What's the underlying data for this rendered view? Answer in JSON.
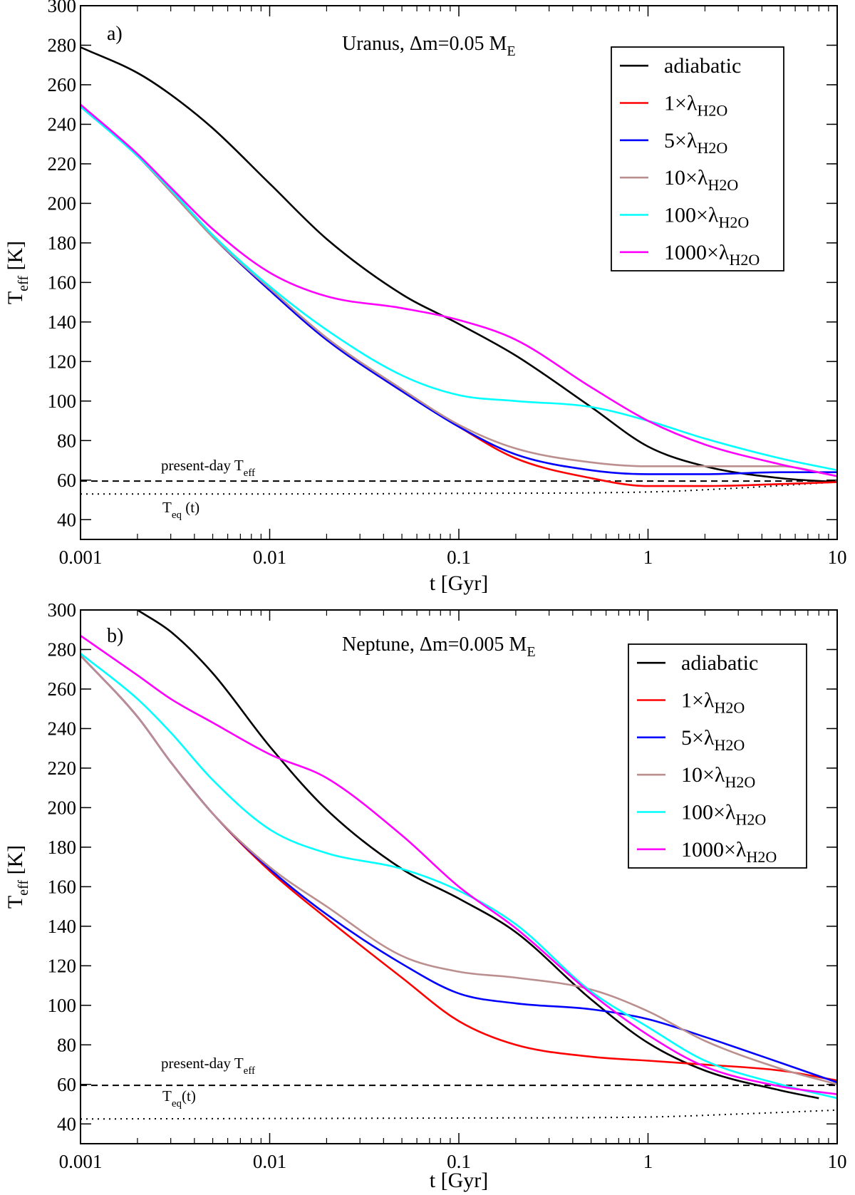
{
  "chart_data": [
    {
      "type": "line",
      "panel_label": "a)",
      "title": {
        "main": "Uranus, Δm=0.05 M",
        "sub": "E"
      },
      "xlabel": "t [Gyr]",
      "ylabel": {
        "main": "T",
        "sub": "eff",
        "rest": " [K]"
      },
      "x_scale": "log",
      "xlim": [
        0.001,
        10
      ],
      "ylim": [
        30,
        300
      ],
      "x_ticks": [
        0.001,
        0.01,
        0.1,
        1,
        10
      ],
      "x_tick_labels": [
        "0.001",
        "0.01",
        "0.1",
        "1",
        "10"
      ],
      "y_ticks": [
        40,
        60,
        80,
        100,
        120,
        140,
        160,
        180,
        200,
        220,
        240,
        260,
        280,
        300
      ],
      "y_tick_labels": [
        "40",
        "60",
        "80",
        "100",
        "120",
        "140",
        "160",
        "180",
        "200",
        "220",
        "240",
        "260",
        "280",
        "300"
      ],
      "legend_position": "top-right",
      "series": [
        {
          "name": "adiabatic",
          "legend": {
            "main": "adiabatic",
            "sub": ""
          },
          "color": "#000000",
          "x": [
            0.001,
            0.002,
            0.003,
            0.005,
            0.01,
            0.02,
            0.05,
            0.1,
            0.2,
            0.5,
            1,
            2,
            5,
            10
          ],
          "y": [
            279,
            266,
            255,
            238,
            210,
            182,
            154,
            139,
            123,
            97,
            77,
            67,
            61,
            59
          ]
        },
        {
          "name": "1×λH2O",
          "legend": {
            "main": "1×λ",
            "sub": "H2O"
          },
          "color": "#ff0000",
          "x": [
            0.001,
            0.002,
            0.003,
            0.005,
            0.01,
            0.02,
            0.05,
            0.1,
            0.2,
            0.5,
            1,
            2,
            5,
            10
          ],
          "y": [
            249,
            224,
            206,
            183,
            156,
            131,
            105,
            87,
            71,
            61,
            57,
            57,
            58,
            59
          ]
        },
        {
          "name": "5×λH2O",
          "legend": {
            "main": "5×λ",
            "sub": "H2O"
          },
          "color": "#0000ff",
          "x": [
            0.001,
            0.002,
            0.003,
            0.005,
            0.01,
            0.02,
            0.05,
            0.1,
            0.2,
            0.5,
            1,
            2,
            5,
            10
          ],
          "y": [
            249,
            224,
            206,
            183,
            156,
            131,
            105,
            87,
            73,
            65,
            63,
            63,
            64,
            64
          ]
        },
        {
          "name": "10×λH2O",
          "legend": {
            "main": "10×λ",
            "sub": "H2O"
          },
          "color": "#bc8f8f",
          "x": [
            0.001,
            0.002,
            0.003,
            0.005,
            0.01,
            0.02,
            0.05,
            0.1,
            0.2,
            0.5,
            1,
            2,
            5,
            10
          ],
          "y": [
            249,
            224,
            206,
            183,
            157,
            132,
            106,
            88,
            76,
            69,
            67,
            67,
            67,
            62
          ]
        },
        {
          "name": "100×λH2O",
          "legend": {
            "main": "100×λ",
            "sub": "H2O"
          },
          "color": "#00ffff",
          "x": [
            0.001,
            0.002,
            0.003,
            0.005,
            0.01,
            0.02,
            0.05,
            0.1,
            0.2,
            0.5,
            1,
            2,
            5,
            10
          ],
          "y": [
            249,
            224,
            207,
            184,
            158,
            136,
            113,
            103,
            100,
            97,
            90,
            81,
            71,
            65
          ]
        },
        {
          "name": "1000×λH2O",
          "legend": {
            "main": "1000×λ",
            "sub": "H2O"
          },
          "color": "#ff00ff",
          "x": [
            0.001,
            0.002,
            0.003,
            0.005,
            0.01,
            0.02,
            0.05,
            0.1,
            0.2,
            0.5,
            1,
            2,
            5,
            10
          ],
          "y": [
            250,
            225,
            208,
            187,
            165,
            153,
            147,
            141,
            131,
            107,
            90,
            78,
            68,
            62
          ]
        }
      ],
      "reference_lines": [
        {
          "kind": "present-day",
          "label": {
            "main": "present-day T",
            "sub": "eff",
            "rest": ""
          },
          "style": "dashed",
          "x": [
            0.001,
            10
          ],
          "y": [
            59.5,
            59.5
          ]
        },
        {
          "kind": "equilibrium",
          "label": {
            "main": "T",
            "sub": "eq",
            "rest": " (t)"
          },
          "style": "dotted",
          "x": [
            0.001,
            0.01,
            0.1,
            1,
            3,
            10
          ],
          "y": [
            53,
            53,
            53.3,
            54,
            56,
            59
          ]
        }
      ]
    },
    {
      "type": "line",
      "panel_label": "b)",
      "title": {
        "main": "Neptune, Δm=0.005 M",
        "sub": "E"
      },
      "xlabel": "t [Gyr]",
      "ylabel": {
        "main": "T",
        "sub": "eff",
        "rest": " [K]"
      },
      "x_scale": "log",
      "xlim": [
        0.001,
        10
      ],
      "ylim": [
        30,
        300
      ],
      "x_ticks": [
        0.001,
        0.01,
        0.1,
        1,
        10
      ],
      "x_tick_labels": [
        "0.001",
        "0.01",
        "0.1",
        "1",
        "10"
      ],
      "y_ticks": [
        40,
        60,
        80,
        100,
        120,
        140,
        160,
        180,
        200,
        220,
        240,
        260,
        280,
        300
      ],
      "y_tick_labels": [
        "40",
        "60",
        "80",
        "100",
        "120",
        "140",
        "160",
        "180",
        "200",
        "220",
        "240",
        "260",
        "280",
        "300"
      ],
      "legend_position": "top-right",
      "series": [
        {
          "name": "adiabatic",
          "legend": {
            "main": "adiabatic",
            "sub": ""
          },
          "color": "#000000",
          "x": [
            0.002,
            0.003,
            0.005,
            0.01,
            0.02,
            0.05,
            0.1,
            0.2,
            0.5,
            1,
            2,
            5,
            8
          ],
          "y": [
            300,
            289,
            268,
            231,
            199,
            169,
            154,
            137,
            103,
            81,
            67,
            57,
            53
          ]
        },
        {
          "name": "1×λH2O",
          "legend": {
            "main": "1×λ",
            "sub": "H2O"
          },
          "color": "#ff0000",
          "x": [
            0.001,
            0.002,
            0.003,
            0.005,
            0.01,
            0.02,
            0.05,
            0.1,
            0.2,
            0.5,
            1,
            2,
            5,
            10
          ],
          "y": [
            277,
            246,
            223,
            197,
            168,
            144,
            114,
            92,
            80,
            74,
            72,
            70,
            67,
            62
          ]
        },
        {
          "name": "5×λH2O",
          "legend": {
            "main": "5×λ",
            "sub": "H2O"
          },
          "color": "#0000ff",
          "x": [
            0.001,
            0.002,
            0.003,
            0.005,
            0.01,
            0.02,
            0.05,
            0.1,
            0.2,
            0.5,
            1,
            2,
            5,
            10
          ],
          "y": [
            277,
            246,
            223,
            197,
            169,
            146,
            121,
            106,
            101,
            98,
            93,
            84,
            71,
            61
          ]
        },
        {
          "name": "10×λH2O",
          "legend": {
            "main": "10×λ",
            "sub": "H2O"
          },
          "color": "#bc8f8f",
          "x": [
            0.001,
            0.002,
            0.003,
            0.005,
            0.01,
            0.02,
            0.05,
            0.1,
            0.2,
            0.5,
            1,
            2,
            5,
            10
          ],
          "y": [
            277,
            246,
            223,
            197,
            170,
            150,
            125,
            117,
            114,
            108,
            97,
            82,
            68,
            60
          ]
        },
        {
          "name": "100×λH2O",
          "legend": {
            "main": "100×λ",
            "sub": "H2O"
          },
          "color": "#00ffff",
          "x": [
            0.001,
            0.002,
            0.003,
            0.005,
            0.01,
            0.02,
            0.05,
            0.1,
            0.2,
            0.5,
            1,
            2,
            5,
            10
          ],
          "y": [
            278,
            255,
            238,
            214,
            189,
            177,
            169,
            158,
            141,
            107,
            89,
            72,
            60,
            53
          ]
        },
        {
          "name": "1000×λH2O",
          "legend": {
            "main": "1000×λ",
            "sub": "H2O"
          },
          "color": "#ff00ff",
          "x": [
            0.001,
            0.002,
            0.003,
            0.005,
            0.01,
            0.02,
            0.05,
            0.1,
            0.2,
            0.5,
            1,
            2,
            5,
            10
          ],
          "y": [
            287,
            267,
            255,
            243,
            227,
            215,
            186,
            160,
            139,
            106,
            85,
            69,
            59,
            55
          ]
        }
      ],
      "reference_lines": [
        {
          "kind": "present-day",
          "label": {
            "main": "present-day T",
            "sub": "eff",
            "rest": ""
          },
          "style": "dashed",
          "x": [
            0.001,
            10
          ],
          "y": [
            59.5,
            59.5
          ]
        },
        {
          "kind": "equilibrium",
          "label": {
            "main": "T",
            "sub": "eq",
            "rest": "(t)"
          },
          "style": "dotted",
          "x": [
            0.001,
            0.1,
            1,
            3,
            10
          ],
          "y": [
            42.5,
            43,
            43.5,
            45,
            47
          ]
        }
      ]
    }
  ]
}
